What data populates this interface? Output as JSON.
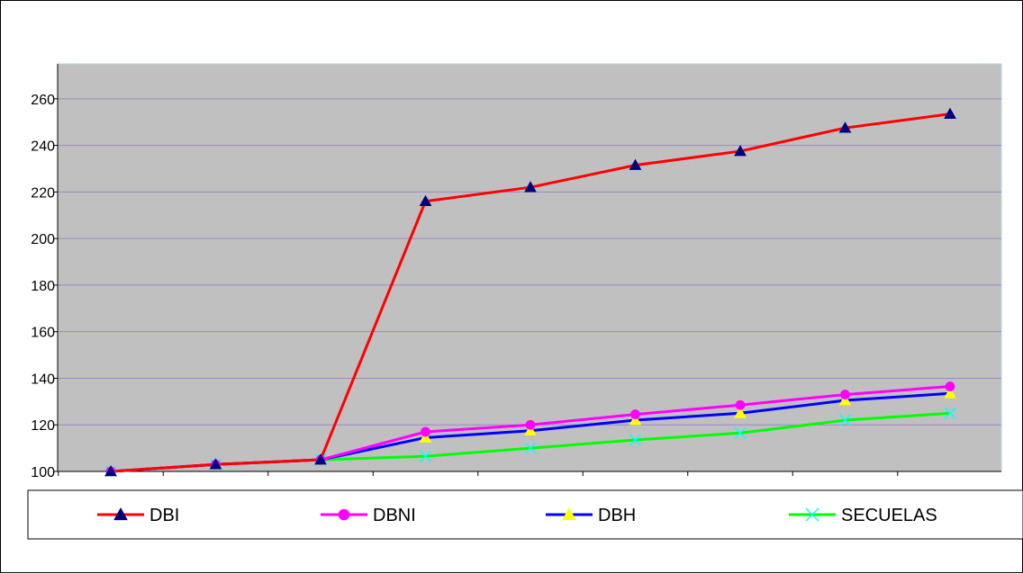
{
  "chart_data": {
    "type": "line",
    "title": "",
    "xlabel": "",
    "ylabel": "",
    "ylim": [
      100,
      275
    ],
    "yticks": [
      100,
      120,
      140,
      160,
      180,
      200,
      220,
      240,
      260
    ],
    "ytick_labels": [
      "100",
      "120",
      "140",
      "160",
      "180",
      "200",
      "220",
      "240",
      "260"
    ],
    "x": [
      1,
      2,
      3,
      4,
      5,
      6,
      7,
      8,
      9
    ],
    "grid": "horizontal",
    "legend_position": "bottom",
    "plot_background": "#c0c0c0",
    "series": [
      {
        "name": "DBI",
        "color": "#ff0000",
        "marker": "triangle",
        "marker_color": "#000080",
        "values": [
          100,
          103,
          105,
          216,
          222,
          231.5,
          237.5,
          247.5,
          253.5
        ]
      },
      {
        "name": "DBNI",
        "color": "#ff00ff",
        "marker": "circle",
        "marker_color": "#ff00ff",
        "values": [
          100,
          103,
          105,
          117,
          120,
          124.5,
          128.5,
          133,
          136.5
        ]
      },
      {
        "name": "DBH",
        "color": "#0000ff",
        "marker": "triangle",
        "marker_color": "#ffff00",
        "values": [
          100,
          103,
          105,
          114.5,
          117.5,
          122,
          125,
          130.5,
          133.5
        ]
      },
      {
        "name": "SECUELAS",
        "color": "#00ff00",
        "marker": "x",
        "marker_color": "#00ffff",
        "values": [
          100,
          103,
          105,
          106.5,
          110,
          113.5,
          116.5,
          122,
          125
        ]
      }
    ]
  }
}
